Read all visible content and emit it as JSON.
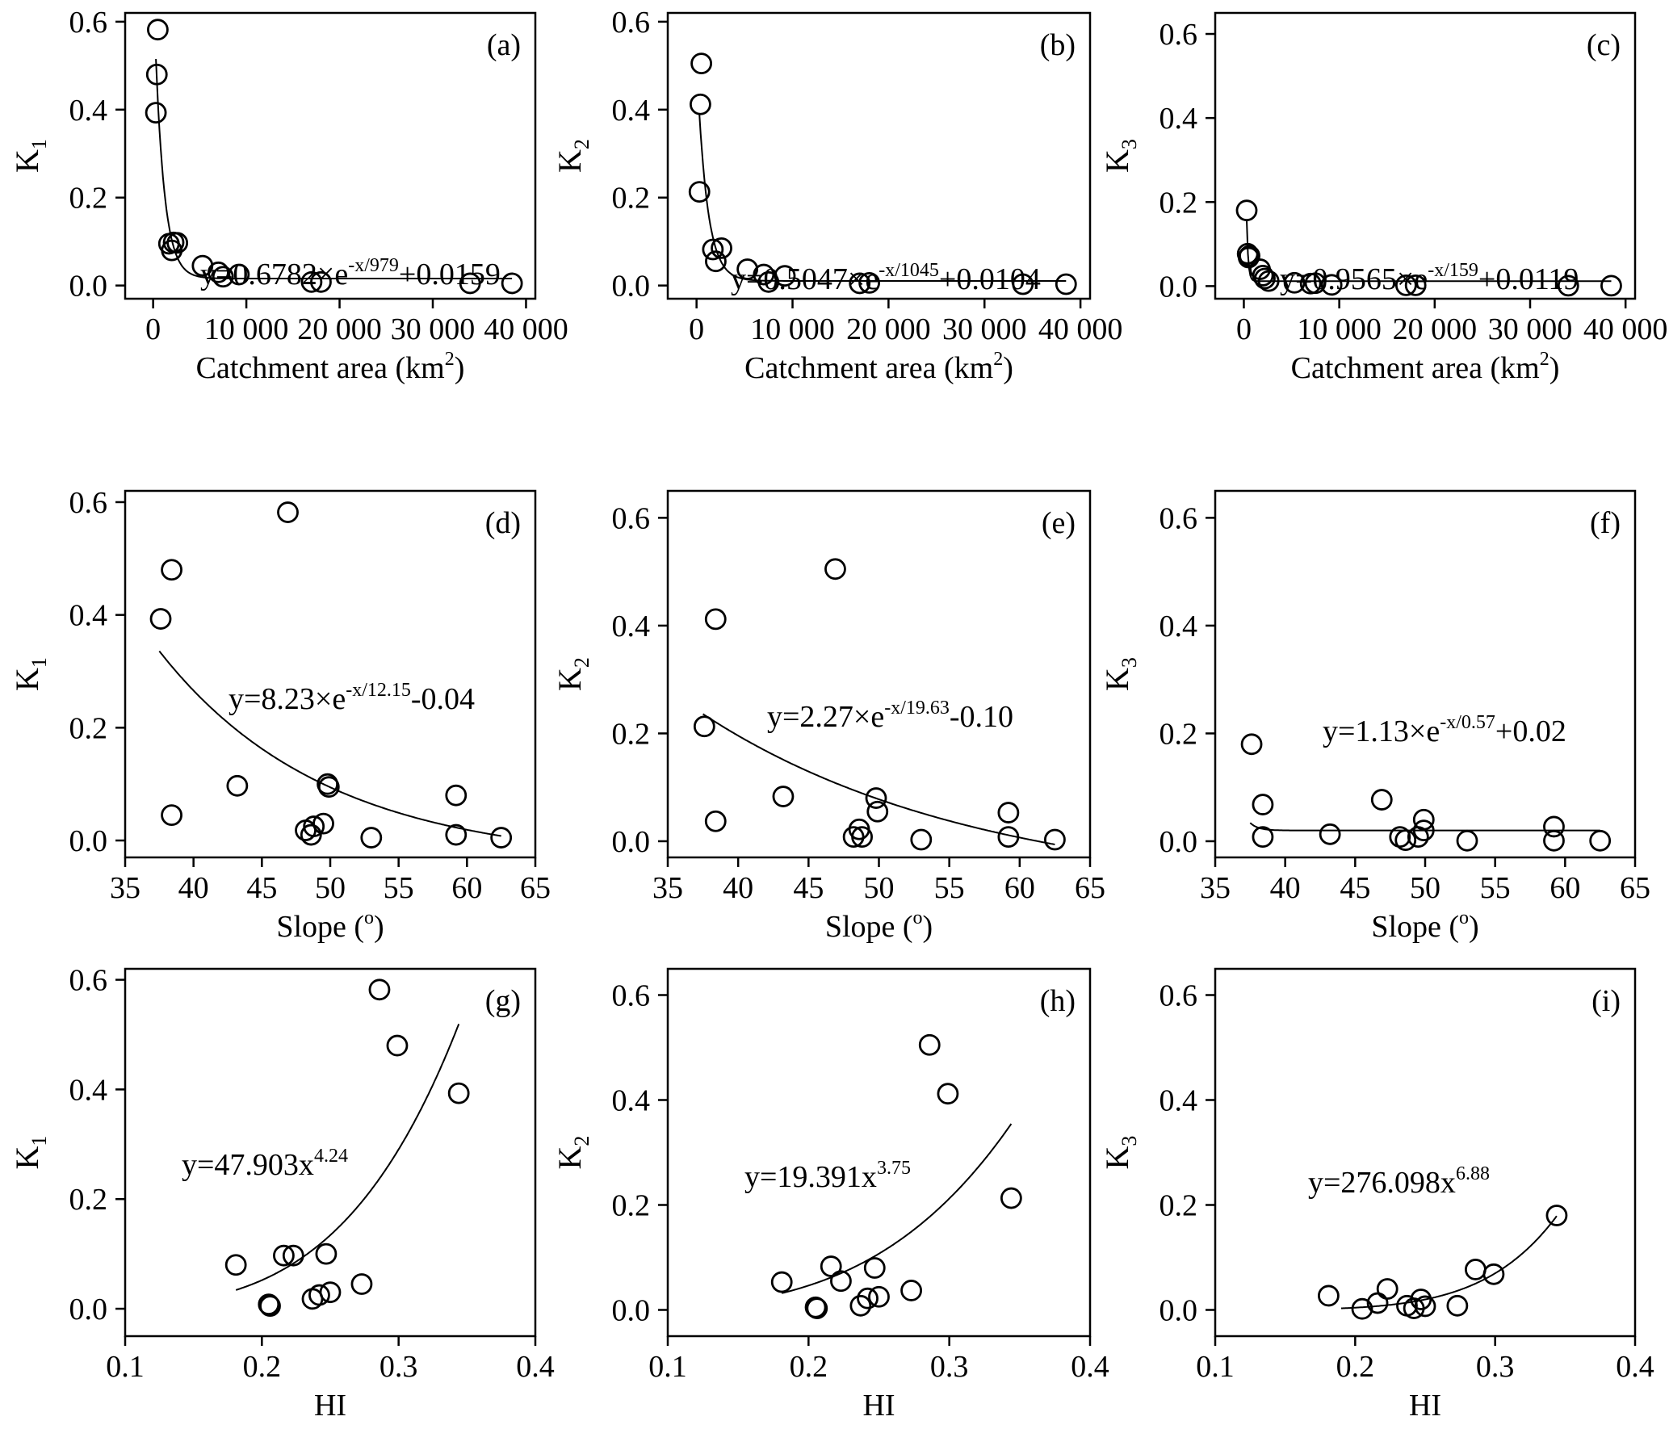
{
  "chart_data": [
    {
      "panel": "(a)",
      "type": "scatter",
      "xlabel_base": "Catchment area (km",
      "xlabel_sup": "2",
      "xlabel_tail": ")",
      "ylabel_base": "K",
      "ylabel_sub": "1",
      "xlim": [
        -3000,
        41000
      ],
      "ylim": [
        -0.03,
        0.62
      ],
      "xticks": [
        0,
        10000,
        20000,
        30000,
        40000
      ],
      "xtick_labels": [
        "0",
        "10 000",
        "20 000",
        "30 000",
        "40 000"
      ],
      "yticks": [
        0,
        0.2,
        0.4,
        0.6
      ],
      "ytick_labels": [
        "0.0",
        "0.2",
        "0.4",
        "0.6"
      ],
      "equation": {
        "base": "y=0.6782×e",
        "sup": "-x/979",
        "tail": "+0.0159"
      },
      "fit": {
        "kind": "exp",
        "a": 0.6782,
        "b": 979,
        "c": 0.0159,
        "xrange": [
          300,
          38500
        ]
      },
      "points": [
        [
          300,
          0.393
        ],
        [
          400,
          0.48
        ],
        [
          500,
          0.582
        ],
        [
          1700,
          0.095
        ],
        [
          2000,
          0.08
        ],
        [
          2200,
          0.098
        ],
        [
          2600,
          0.097
        ],
        [
          5300,
          0.045
        ],
        [
          7000,
          0.03
        ],
        [
          7500,
          0.02
        ],
        [
          9200,
          0.025
        ],
        [
          17000,
          0.008
        ],
        [
          18000,
          0.008
        ],
        [
          34000,
          0.005
        ],
        [
          38500,
          0.005
        ]
      ]
    },
    {
      "panel": "(b)",
      "type": "scatter",
      "xlabel_base": "Catchment area (km",
      "xlabel_sup": "2",
      "xlabel_tail": ")",
      "ylabel_base": "K",
      "ylabel_sub": "2",
      "xlim": [
        -3000,
        41000
      ],
      "ylim": [
        -0.03,
        0.62
      ],
      "xticks": [
        0,
        10000,
        20000,
        30000,
        40000
      ],
      "xtick_labels": [
        "0",
        "10 000",
        "20 000",
        "30 000",
        "40 000"
      ],
      "yticks": [
        0,
        0.2,
        0.4,
        0.6
      ],
      "ytick_labels": [
        "0.0",
        "0.2",
        "0.4",
        "0.6"
      ],
      "equation": {
        "base": "y=0.5047×e",
        "sup": "-x/1045",
        "tail": "+0.0104"
      },
      "fit": {
        "kind": "exp",
        "a": 0.5047,
        "b": 1045,
        "c": 0.0104,
        "xrange": [
          300,
          38500
        ]
      },
      "points": [
        [
          300,
          0.213
        ],
        [
          400,
          0.412
        ],
        [
          500,
          0.505
        ],
        [
          1700,
          0.082
        ],
        [
          2000,
          0.055
        ],
        [
          2600,
          0.085
        ],
        [
          5300,
          0.037
        ],
        [
          7000,
          0.025
        ],
        [
          7500,
          0.008
        ],
        [
          9200,
          0.022
        ],
        [
          17000,
          0.005
        ],
        [
          18000,
          0.006
        ],
        [
          34000,
          0.003
        ],
        [
          38500,
          0.003
        ]
      ]
    },
    {
      "panel": "(c)",
      "type": "scatter",
      "xlabel_base": "Catchment area (km",
      "xlabel_sup": "2",
      "xlabel_tail": ")",
      "ylabel_base": "K",
      "ylabel_sub": "3",
      "xlim": [
        -3000,
        41000
      ],
      "ylim": [
        -0.03,
        0.65
      ],
      "xticks": [
        0,
        10000,
        20000,
        30000,
        40000
      ],
      "xtick_labels": [
        "0",
        "10 000",
        "20 000",
        "30 000",
        "40 000"
      ],
      "yticks": [
        0,
        0.2,
        0.4,
        0.6
      ],
      "ytick_labels": [
        "0.0",
        "0.2",
        "0.4",
        "0.6"
      ],
      "equation": {
        "base": "y=0.9565×e",
        "sup": "-x/159",
        "tail": "+0.0119"
      },
      "fit": {
        "kind": "exp",
        "a": 0.9565,
        "b": 159,
        "c": 0.0119,
        "xrange": [
          300,
          38500
        ]
      },
      "points": [
        [
          300,
          0.18
        ],
        [
          400,
          0.077
        ],
        [
          500,
          0.068
        ],
        [
          600,
          0.072
        ],
        [
          1700,
          0.04
        ],
        [
          2000,
          0.025
        ],
        [
          2200,
          0.018
        ],
        [
          2600,
          0.012
        ],
        [
          5300,
          0.008
        ],
        [
          7000,
          0.006
        ],
        [
          7500,
          0.007
        ],
        [
          9200,
          0.003
        ],
        [
          17000,
          0.002
        ],
        [
          18000,
          0.002
        ],
        [
          34000,
          0.001
        ],
        [
          38500,
          0.001
        ]
      ]
    },
    {
      "panel": "(d)",
      "type": "scatter",
      "xlabel_base": "Slope (",
      "xlabel_sup": "o",
      "xlabel_tail": ")",
      "ylabel_base": "K",
      "ylabel_sub": "1",
      "xlim": [
        35,
        65
      ],
      "ylim": [
        -0.03,
        0.62
      ],
      "xticks": [
        35,
        40,
        45,
        50,
        55,
        60,
        65
      ],
      "xtick_labels": [
        "35",
        "40",
        "45",
        "50",
        "55",
        "60",
        "65"
      ],
      "yticks": [
        0,
        0.2,
        0.4,
        0.6
      ],
      "ytick_labels": [
        "0.0",
        "0.2",
        "0.4",
        "0.6"
      ],
      "equation": {
        "base": "y=8.23×e",
        "sup": "-x/12.15",
        "tail": "-0.04"
      },
      "fit": {
        "kind": "exp",
        "a": 8.23,
        "b": 12.15,
        "c": -0.04,
        "xrange": [
          37.5,
          62.5
        ]
      },
      "points": [
        [
          37.6,
          0.393
        ],
        [
          38.4,
          0.48
        ],
        [
          38.4,
          0.045
        ],
        [
          43.2,
          0.097
        ],
        [
          46.9,
          0.582
        ],
        [
          48.2,
          0.018
        ],
        [
          48.6,
          0.01
        ],
        [
          48.8,
          0.025
        ],
        [
          49.5,
          0.03
        ],
        [
          49.8,
          0.1
        ],
        [
          49.9,
          0.095
        ],
        [
          53.0,
          0.005
        ],
        [
          59.2,
          0.08
        ],
        [
          59.2,
          0.01
        ],
        [
          62.5,
          0.005
        ]
      ]
    },
    {
      "panel": "(e)",
      "type": "scatter",
      "xlabel_base": "Slope (",
      "xlabel_sup": "o",
      "xlabel_tail": ")",
      "ylabel_base": "K",
      "ylabel_sub": "2",
      "xlim": [
        35,
        65
      ],
      "ylim": [
        -0.03,
        0.65
      ],
      "xticks": [
        35,
        40,
        45,
        50,
        55,
        60,
        65
      ],
      "xtick_labels": [
        "35",
        "40",
        "45",
        "50",
        "55",
        "60",
        "65"
      ],
      "yticks": [
        0,
        0.2,
        0.4,
        0.6
      ],
      "ytick_labels": [
        "0.0",
        "0.2",
        "0.4",
        "0.6"
      ],
      "equation": {
        "base": "y=2.27×e",
        "sup": "-x/19.63",
        "tail": "-0.10"
      },
      "fit": {
        "kind": "exp",
        "a": 2.27,
        "b": 19.63,
        "c": -0.1,
        "xrange": [
          37.5,
          62.5
        ]
      },
      "points": [
        [
          37.6,
          0.213
        ],
        [
          38.4,
          0.412
        ],
        [
          38.4,
          0.037
        ],
        [
          43.2,
          0.083
        ],
        [
          46.9,
          0.505
        ],
        [
          48.2,
          0.008
        ],
        [
          48.6,
          0.022
        ],
        [
          48.8,
          0.008
        ],
        [
          49.8,
          0.08
        ],
        [
          49.9,
          0.055
        ],
        [
          53.0,
          0.003
        ],
        [
          59.2,
          0.053
        ],
        [
          59.2,
          0.008
        ],
        [
          62.5,
          0.003
        ]
      ]
    },
    {
      "panel": "(f)",
      "type": "scatter",
      "xlabel_base": "Slope (",
      "xlabel_sup": "o",
      "xlabel_tail": ")",
      "ylabel_base": "K",
      "ylabel_sub": "3",
      "xlim": [
        35,
        65
      ],
      "ylim": [
        -0.03,
        0.65
      ],
      "xticks": [
        35,
        40,
        45,
        50,
        55,
        60,
        65
      ],
      "xtick_labels": [
        "35",
        "40",
        "45",
        "50",
        "55",
        "60",
        "65"
      ],
      "yticks": [
        0,
        0.2,
        0.4,
        0.6
      ],
      "ytick_labels": [
        "0.0",
        "0.2",
        "0.4",
        "0.6"
      ],
      "equation": {
        "base": "y=1.13×e",
        "sup": "-x/0.57",
        "tail": "+0.02"
      },
      "fit": {
        "kind": "exp",
        "a": 1.13,
        "b": 0.57,
        "c": 0.02,
        "xrange": [
          37.5,
          62.5
        ],
        "xshift": 35
      },
      "points": [
        [
          37.6,
          0.18
        ],
        [
          38.4,
          0.068
        ],
        [
          38.4,
          0.008
        ],
        [
          43.2,
          0.013
        ],
        [
          46.9,
          0.077
        ],
        [
          48.2,
          0.008
        ],
        [
          48.6,
          0.002
        ],
        [
          49.5,
          0.008
        ],
        [
          49.9,
          0.04
        ],
        [
          49.9,
          0.02
        ],
        [
          53.0,
          0.001
        ],
        [
          59.2,
          0.027
        ],
        [
          59.2,
          0.001
        ],
        [
          62.5,
          0.001
        ]
      ]
    },
    {
      "panel": "(g)",
      "type": "scatter",
      "xlabel_base": "HI",
      "xlabel_sup": "",
      "xlabel_tail": "",
      "ylabel_base": "K",
      "ylabel_sub": "1",
      "xlim": [
        0.1,
        0.4
      ],
      "ylim": [
        -0.05,
        0.62
      ],
      "xticks": [
        0.1,
        0.2,
        0.3,
        0.4
      ],
      "xtick_labels": [
        "0.1",
        "0.2",
        "0.3",
        "0.4"
      ],
      "yticks": [
        0,
        0.2,
        0.4,
        0.6
      ],
      "ytick_labels": [
        "0.0",
        "0.2",
        "0.4",
        "0.6"
      ],
      "equation": {
        "base": "y=47.903x",
        "sup": "4.24",
        "tail": ""
      },
      "fit": {
        "kind": "pow",
        "a": 47.903,
        "b": 4.24,
        "xrange": [
          0.181,
          0.344
        ]
      },
      "points": [
        [
          0.181,
          0.08
        ],
        [
          0.205,
          0.008
        ],
        [
          0.206,
          0.005
        ],
        [
          0.216,
          0.097
        ],
        [
          0.223,
          0.097
        ],
        [
          0.237,
          0.018
        ],
        [
          0.242,
          0.025
        ],
        [
          0.247,
          0.1
        ],
        [
          0.25,
          0.03
        ],
        [
          0.273,
          0.045
        ],
        [
          0.286,
          0.582
        ],
        [
          0.299,
          0.48
        ],
        [
          0.344,
          0.393
        ]
      ]
    },
    {
      "panel": "(h)",
      "type": "scatter",
      "xlabel_base": "HI",
      "xlabel_sup": "",
      "xlabel_tail": "",
      "ylabel_base": "K",
      "ylabel_sub": "2",
      "xlim": [
        0.1,
        0.4
      ],
      "ylim": [
        -0.05,
        0.65
      ],
      "xticks": [
        0.1,
        0.2,
        0.3,
        0.4
      ],
      "xtick_labels": [
        "0.1",
        "0.2",
        "0.3",
        "0.4"
      ],
      "yticks": [
        0,
        0.2,
        0.4,
        0.6
      ],
      "ytick_labels": [
        "0.0",
        "0.2",
        "0.4",
        "0.6"
      ],
      "equation": {
        "base": "y=19.391x",
        "sup": "3.75",
        "tail": ""
      },
      "fit": {
        "kind": "pow",
        "a": 19.391,
        "b": 3.75,
        "xrange": [
          0.181,
          0.344
        ]
      },
      "points": [
        [
          0.181,
          0.053
        ],
        [
          0.205,
          0.005
        ],
        [
          0.206,
          0.003
        ],
        [
          0.216,
          0.083
        ],
        [
          0.223,
          0.055
        ],
        [
          0.237,
          0.008
        ],
        [
          0.242,
          0.022
        ],
        [
          0.247,
          0.08
        ],
        [
          0.25,
          0.025
        ],
        [
          0.273,
          0.037
        ],
        [
          0.286,
          0.505
        ],
        [
          0.299,
          0.412
        ],
        [
          0.344,
          0.213
        ]
      ]
    },
    {
      "panel": "(i)",
      "type": "scatter",
      "xlabel_base": "HI",
      "xlabel_sup": "",
      "xlabel_tail": "",
      "ylabel_base": "K",
      "ylabel_sub": "3",
      "xlim": [
        0.1,
        0.4
      ],
      "ylim": [
        -0.05,
        0.65
      ],
      "xticks": [
        0.1,
        0.2,
        0.3,
        0.4
      ],
      "xtick_labels": [
        "0.1",
        "0.2",
        "0.3",
        "0.4"
      ],
      "yticks": [
        0,
        0.2,
        0.4,
        0.6
      ],
      "ytick_labels": [
        "0.0",
        "0.2",
        "0.4",
        "0.6"
      ],
      "equation": {
        "base": "y=276.098x",
        "sup": "6.88",
        "tail": ""
      },
      "fit": {
        "kind": "pow",
        "a": 276.098,
        "b": 6.88,
        "xrange": [
          0.19,
          0.344
        ]
      },
      "points": [
        [
          0.181,
          0.027
        ],
        [
          0.205,
          0.002
        ],
        [
          0.216,
          0.013
        ],
        [
          0.223,
          0.04
        ],
        [
          0.237,
          0.008
        ],
        [
          0.242,
          0.003
        ],
        [
          0.247,
          0.02
        ],
        [
          0.25,
          0.007
        ],
        [
          0.273,
          0.008
        ],
        [
          0.286,
          0.077
        ],
        [
          0.299,
          0.068
        ],
        [
          0.344,
          0.18
        ]
      ]
    }
  ]
}
